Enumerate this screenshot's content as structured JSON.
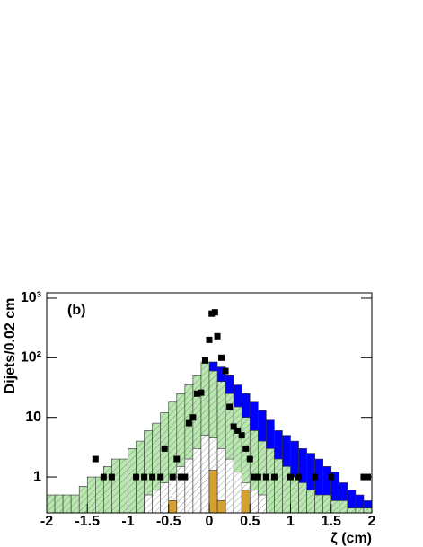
{
  "chart_data": {
    "type": "histogram",
    "ylabel": "Dijets/0.02 cm",
    "xlabel": "ζ (cm)",
    "annotation": "(b)",
    "bins": [
      -2,
      -1.9,
      -1.8,
      -1.7,
      -1.6,
      -1.5,
      -1.4,
      -1.3,
      -1.2,
      -1.1,
      -1,
      -0.9,
      -0.8,
      -0.7,
      -0.6,
      -0.5,
      -0.4,
      -0.3,
      -0.2,
      -0.1,
      0,
      0.1,
      0.2,
      0.3,
      0.4,
      0.5,
      0.6,
      0.7,
      0.8,
      0.9,
      1,
      1.1,
      1.2,
      1.3,
      1.4,
      1.5,
      1.6,
      1.7,
      1.8,
      1.9,
      2
    ],
    "series": [
      {
        "color": "#0000ff",
        "hatch": false,
        "values": [
          null,
          null,
          null,
          null,
          null,
          null,
          null,
          null,
          null,
          null,
          null,
          null,
          null,
          null,
          null,
          null,
          null,
          null,
          null,
          null,
          85,
          70,
          50,
          35,
          25,
          18,
          13,
          9,
          6,
          5,
          4,
          3,
          2.5,
          2,
          1.5,
          1.2,
          0.8,
          0.6,
          0.5,
          0.4
        ]
      },
      {
        "color": "#b8e8b0",
        "hatch": true,
        "values": [
          0.5,
          0.5,
          0.5,
          0.5,
          0.7,
          1,
          1,
          1.5,
          2,
          2,
          3,
          4,
          6,
          8,
          12,
          18,
          25,
          35,
          50,
          85,
          60,
          40,
          25,
          15,
          10,
          6,
          4,
          3,
          2,
          1.5,
          1,
          0.8,
          0.6,
          0.5,
          0.5,
          0.4,
          0.4,
          0.3,
          0.3,
          0.3
        ]
      },
      {
        "color": "#ffffff",
        "hatch": true,
        "values": [
          null,
          null,
          null,
          null,
          null,
          null,
          null,
          null,
          null,
          null,
          null,
          null,
          0.5,
          0.6,
          0.8,
          1,
          1.5,
          2,
          3,
          5,
          4.5,
          3,
          2,
          1.2,
          0.8,
          0.6,
          0.5,
          null,
          null,
          null,
          null,
          null,
          null,
          null,
          null,
          null,
          null,
          null,
          null,
          null
        ]
      },
      {
        "color": "#d4a030",
        "hatch": false,
        "values": [
          null,
          null,
          null,
          null,
          null,
          null,
          null,
          null,
          null,
          null,
          null,
          null,
          null,
          null,
          null,
          0.4,
          null,
          null,
          null,
          null,
          1.3,
          0.4,
          null,
          null,
          0.6,
          null,
          null,
          null,
          null,
          null,
          null,
          null,
          null,
          null,
          null,
          null,
          null,
          null,
          null,
          null
        ]
      }
    ],
    "markers": {
      "color": "#000000",
      "x": [
        -1.4,
        -1.3,
        -1.2,
        -0.9,
        -0.8,
        -0.7,
        -0.6,
        -0.55,
        -0.45,
        -0.4,
        -0.35,
        -0.3,
        -0.25,
        -0.2,
        -0.15,
        -0.1,
        -0.05,
        0,
        0.03,
        0.07,
        0.1,
        0.15,
        0.2,
        0.25,
        0.3,
        0.35,
        0.4,
        0.45,
        0.5,
        0.55,
        0.6,
        0.7,
        0.8,
        1.0,
        1.1,
        1.3,
        1.5,
        1.9,
        1.95
      ],
      "values": [
        2,
        1,
        1,
        1,
        1,
        1,
        1,
        3,
        1,
        2,
        1,
        1,
        8,
        10,
        25,
        26,
        90,
        200,
        550,
        580,
        230,
        100,
        60,
        15,
        7,
        6,
        5,
        3,
        2,
        1,
        1,
        1,
        1,
        1,
        1,
        1,
        1,
        1,
        1
      ]
    },
    "log_y": true,
    "xlim": [
      -2,
      2
    ],
    "ylim": [
      0.25,
      1230
    ],
    "xticks": [
      -2,
      -1.5,
      -1,
      -0.5,
      0,
      0.5,
      1,
      1.5,
      2
    ],
    "yticks": [
      1,
      10,
      {
        "value": 100,
        "label": "10²"
      },
      {
        "value": 1000,
        "label": "10³"
      }
    ]
  }
}
